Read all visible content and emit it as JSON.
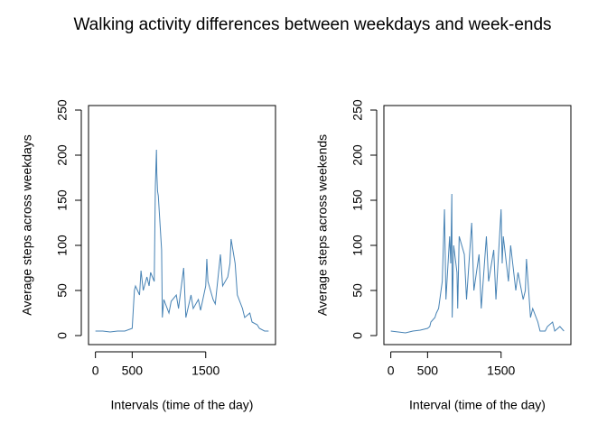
{
  "title": "Walking activity differences between weekdays and week-ends",
  "chart_data": [
    {
      "type": "line",
      "ylabel": "Average steps across weekdays",
      "xlabel": "Intervals (time of the day)",
      "x": [
        0,
        100,
        200,
        300,
        400,
        500,
        530,
        545,
        600,
        620,
        650,
        700,
        730,
        750,
        800,
        815,
        830,
        835,
        845,
        855,
        900,
        910,
        930,
        1000,
        1030,
        1100,
        1130,
        1200,
        1230,
        1300,
        1330,
        1400,
        1430,
        1500,
        1515,
        1530,
        1600,
        1630,
        1700,
        1730,
        1800,
        1830,
        1845,
        1900,
        1930,
        2000,
        2030,
        2100,
        2130,
        2200,
        2230,
        2300,
        2355
      ],
      "values": [
        5,
        5,
        4,
        5,
        5,
        8,
        50,
        55,
        45,
        72,
        50,
        65,
        55,
        70,
        60,
        165,
        206,
        180,
        160,
        155,
        95,
        20,
        40,
        25,
        38,
        45,
        30,
        75,
        20,
        45,
        30,
        40,
        28,
        55,
        85,
        60,
        40,
        35,
        90,
        55,
        65,
        80,
        107,
        80,
        45,
        30,
        20,
        25,
        15,
        12,
        8,
        5,
        5
      ],
      "color": "#4682b4",
      "xlim": [
        -94,
        2449
      ],
      "ylim": [
        -10,
        255
      ],
      "xticks": [
        0,
        500,
        1500
      ],
      "yticks": [
        0,
        50,
        100,
        150,
        200,
        250
      ]
    },
    {
      "type": "line",
      "ylabel": "Average steps across weekends",
      "xlabel": "Interval (time of the day)",
      "x": [
        0,
        100,
        200,
        300,
        400,
        500,
        530,
        545,
        600,
        620,
        650,
        700,
        730,
        750,
        800,
        815,
        830,
        835,
        845,
        855,
        900,
        910,
        930,
        1000,
        1030,
        1100,
        1130,
        1200,
        1230,
        1300,
        1330,
        1400,
        1430,
        1500,
        1515,
        1530,
        1600,
        1630,
        1700,
        1730,
        1800,
        1830,
        1845,
        1900,
        1930,
        2000,
        2030,
        2100,
        2130,
        2200,
        2230,
        2300,
        2355
      ],
      "values": [
        5,
        4,
        3,
        5,
        6,
        8,
        10,
        15,
        20,
        25,
        30,
        60,
        140,
        40,
        110,
        80,
        157,
        20,
        60,
        100,
        70,
        30,
        110,
        90,
        40,
        125,
        50,
        90,
        30,
        110,
        60,
        95,
        40,
        140,
        80,
        110,
        60,
        100,
        50,
        70,
        40,
        50,
        85,
        20,
        30,
        15,
        5,
        5,
        10,
        15,
        5,
        10,
        5
      ],
      "color": "#4682b4",
      "xlim": [
        -94,
        2449
      ],
      "ylim": [
        -10,
        255
      ],
      "xticks": [
        0,
        500,
        1500
      ],
      "yticks": [
        0,
        50,
        100,
        150,
        200,
        250
      ]
    }
  ]
}
